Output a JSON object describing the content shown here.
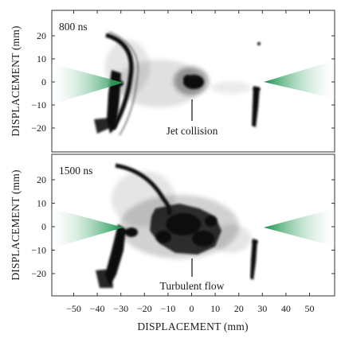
{
  "figure": {
    "top_panel": {
      "time_label": "800 ns",
      "annotation": "Jet collision"
    },
    "bottom_panel": {
      "time_label": "1500 ns",
      "annotation": "Turbulent flow"
    },
    "y_axis_title": "DISPLACEMENT (mm)",
    "x_axis_title": "DISPLACEMENT (mm)",
    "y_ticks": [
      "20",
      "10",
      "0",
      "−10",
      "−20"
    ],
    "x_ticks": [
      "−50",
      "−40",
      "−30",
      "−20",
      "−10",
      "0",
      "10",
      "20",
      "30",
      "40",
      "50"
    ],
    "colors": {
      "jet_cone": "#1a9a55",
      "frame": "#333333",
      "ink": "#111111"
    }
  }
}
